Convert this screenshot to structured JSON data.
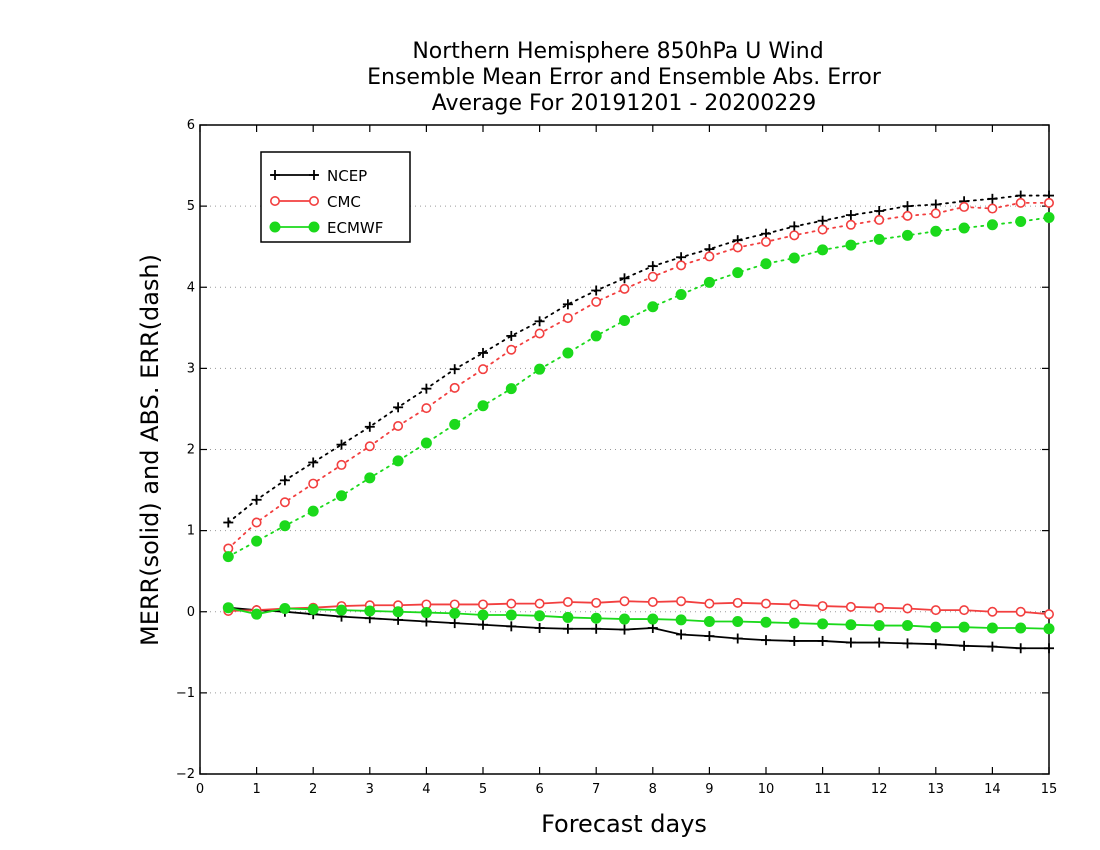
{
  "chart_data": {
    "type": "line",
    "title": [
      "Northern Hemisphere 850hPa U Wind",
      "Ensemble Mean Error and Ensemble Abs. Error",
      "Average For 20191201 - 20200229"
    ],
    "xlabel": "Forecast days",
    "ylabel": "MERR(solid) and ABS. ERR(dash)",
    "xlim": [
      0,
      15
    ],
    "ylim": [
      -2,
      6
    ],
    "xticks": [
      "0",
      "1",
      "2",
      "3",
      "4",
      "5",
      "6",
      "7",
      "8",
      "9",
      "10",
      "11",
      "12",
      "13",
      "14",
      "15"
    ],
    "yticks": [
      "−2",
      "−1",
      "0",
      "1",
      "2",
      "3",
      "4",
      "5",
      "6"
    ],
    "ytick_values": [
      -2,
      -1,
      0,
      1,
      2,
      3,
      4,
      5,
      6
    ],
    "grid": "horizontal dotted",
    "legend": "top-left",
    "x": [
      0.5,
      1,
      1.5,
      2,
      2.5,
      3,
      3.5,
      4,
      4.5,
      5,
      5.5,
      6,
      6.5,
      7,
      7.5,
      8,
      8.5,
      9,
      9.5,
      10,
      10.5,
      11,
      11.5,
      12,
      12.5,
      13,
      13.5,
      14,
      14.5,
      15
    ],
    "series": [
      {
        "name": "NCEP",
        "color": "#000000",
        "marker": "plus",
        "merr": [
          0.05,
          0.02,
          0.0,
          -0.03,
          -0.06,
          -0.08,
          -0.1,
          -0.12,
          -0.14,
          -0.16,
          -0.18,
          -0.2,
          -0.21,
          -0.21,
          -0.22,
          -0.2,
          -0.28,
          -0.3,
          -0.33,
          -0.35,
          -0.36,
          -0.36,
          -0.38,
          -0.38,
          -0.39,
          -0.4,
          -0.42,
          -0.43,
          -0.45,
          -0.45
        ],
        "abs_err": [
          1.1,
          1.38,
          1.62,
          1.84,
          2.06,
          2.28,
          2.52,
          2.75,
          2.99,
          3.19,
          3.4,
          3.58,
          3.79,
          3.96,
          4.11,
          4.26,
          4.37,
          4.47,
          4.58,
          4.66,
          4.75,
          4.82,
          4.89,
          4.94,
          5.0,
          5.02,
          5.06,
          5.09,
          5.13,
          5.13
        ]
      },
      {
        "name": "CMC",
        "color": "#f23f3f",
        "marker": "open-circle",
        "merr": [
          0.01,
          0.02,
          0.04,
          0.05,
          0.07,
          0.08,
          0.08,
          0.09,
          0.09,
          0.09,
          0.1,
          0.1,
          0.12,
          0.11,
          0.13,
          0.12,
          0.13,
          0.1,
          0.11,
          0.1,
          0.09,
          0.07,
          0.06,
          0.05,
          0.04,
          0.02,
          0.02,
          0.0,
          0.0,
          -0.03
        ],
        "abs_err": [
          0.78,
          1.1,
          1.35,
          1.58,
          1.81,
          2.04,
          2.29,
          2.51,
          2.76,
          2.99,
          3.23,
          3.43,
          3.62,
          3.82,
          3.98,
          4.13,
          4.27,
          4.38,
          4.49,
          4.56,
          4.64,
          4.71,
          4.77,
          4.83,
          4.88,
          4.91,
          4.99,
          4.97,
          5.04,
          5.04
        ]
      },
      {
        "name": "ECMWF",
        "color": "#1bd91b",
        "marker": "filled-circle",
        "merr": [
          0.05,
          -0.03,
          0.04,
          0.03,
          0.02,
          0.01,
          0.0,
          -0.01,
          -0.02,
          -0.04,
          -0.04,
          -0.05,
          -0.07,
          -0.08,
          -0.09,
          -0.09,
          -0.1,
          -0.12,
          -0.12,
          -0.13,
          -0.14,
          -0.15,
          -0.16,
          -0.17,
          -0.17,
          -0.19,
          -0.19,
          -0.2,
          -0.2,
          -0.21
        ],
        "abs_err": [
          0.68,
          0.87,
          1.06,
          1.24,
          1.43,
          1.65,
          1.86,
          2.08,
          2.31,
          2.54,
          2.75,
          2.99,
          3.19,
          3.4,
          3.59,
          3.76,
          3.91,
          4.06,
          4.18,
          4.29,
          4.36,
          4.46,
          4.52,
          4.59,
          4.64,
          4.69,
          4.73,
          4.77,
          4.81,
          4.86
        ]
      }
    ]
  }
}
